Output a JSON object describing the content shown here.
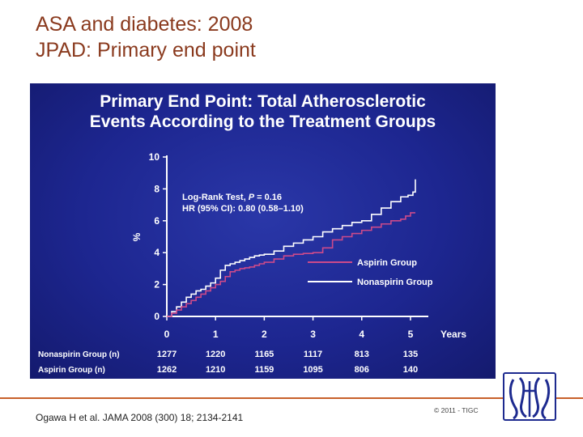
{
  "slide": {
    "title_line1": "ASA and diabetes: 2008",
    "title_line2": "JPAD: Primary end point",
    "citation": "Ogawa H et al. JAMA 2008 (300) 18; 2134-2141",
    "copyright": "© 2011 - TIGC"
  },
  "colors": {
    "title": "#8a3a1e",
    "panel": "#1d2690",
    "nonaspirin_line": "#ffffff",
    "aspirin_line": "#cc4a8a",
    "rule": "#c8602a"
  },
  "chart_data": {
    "type": "line",
    "title_line1": "Primary End Point: Total Atherosclerotic",
    "title_line2": "Events According to the Treatment Groups",
    "xlabel": "Years",
    "ylabel": "%",
    "xlim": [
      0,
      5.3
    ],
    "ylim": [
      0,
      10
    ],
    "xticks": [
      0,
      1,
      2,
      3,
      4,
      5
    ],
    "yticks": [
      0,
      2,
      4,
      6,
      8,
      10
    ],
    "legend": {
      "position": "right-middle",
      "entries": [
        "Aspirin Group",
        "Nonaspirin Group"
      ]
    },
    "annotation": {
      "line1_prefix": "Log-Rank Test, ",
      "line1_var": "P",
      "line1_suffix": " = 0.16",
      "line2": "HR (95% CI): 0.80 (0.58–1.10)"
    },
    "series": [
      {
        "name": "Nonaspirin Group",
        "x": [
          0,
          0.1,
          0.2,
          0.3,
          0.4,
          0.5,
          0.6,
          0.7,
          0.8,
          0.9,
          1.0,
          1.1,
          1.2,
          1.3,
          1.4,
          1.5,
          1.6,
          1.7,
          1.8,
          1.9,
          2.0,
          2.2,
          2.4,
          2.6,
          2.8,
          3.0,
          3.2,
          3.4,
          3.6,
          3.8,
          4.0,
          4.2,
          4.4,
          4.6,
          4.8,
          4.95,
          5.05,
          5.1
        ],
        "y": [
          0,
          0.3,
          0.6,
          0.9,
          1.2,
          1.4,
          1.6,
          1.7,
          1.9,
          2.1,
          2.4,
          2.9,
          3.2,
          3.3,
          3.4,
          3.5,
          3.6,
          3.7,
          3.8,
          3.85,
          3.9,
          4.1,
          4.4,
          4.6,
          4.8,
          5.0,
          5.3,
          5.5,
          5.7,
          5.9,
          6.0,
          6.4,
          6.8,
          7.2,
          7.5,
          7.6,
          7.8,
          8.6
        ]
      },
      {
        "name": "Aspirin Group",
        "x": [
          0,
          0.1,
          0.2,
          0.3,
          0.4,
          0.5,
          0.6,
          0.7,
          0.8,
          0.9,
          1.0,
          1.1,
          1.2,
          1.3,
          1.4,
          1.5,
          1.6,
          1.7,
          1.8,
          1.9,
          2.0,
          2.2,
          2.4,
          2.6,
          2.8,
          3.0,
          3.2,
          3.4,
          3.6,
          3.8,
          4.0,
          4.2,
          4.4,
          4.6,
          4.8,
          4.9,
          5.0,
          5.1
        ],
        "y": [
          0,
          0.2,
          0.4,
          0.6,
          0.8,
          1.0,
          1.2,
          1.4,
          1.6,
          1.8,
          2.0,
          2.2,
          2.5,
          2.8,
          2.9,
          3.0,
          3.05,
          3.1,
          3.2,
          3.3,
          3.4,
          3.6,
          3.8,
          3.9,
          3.95,
          4.0,
          4.3,
          4.8,
          5.0,
          5.2,
          5.4,
          5.6,
          5.8,
          6.0,
          6.1,
          6.3,
          6.5,
          6.5
        ]
      }
    ],
    "risk_table": {
      "rows": [
        {
          "label": "Nonaspirin Group (n)",
          "values": [
            1277,
            1220,
            1165,
            1117,
            813,
            135
          ]
        },
        {
          "label": "Aspirin Group (n)",
          "values": [
            1262,
            1210,
            1159,
            1095,
            806,
            140
          ]
        }
      ]
    }
  }
}
